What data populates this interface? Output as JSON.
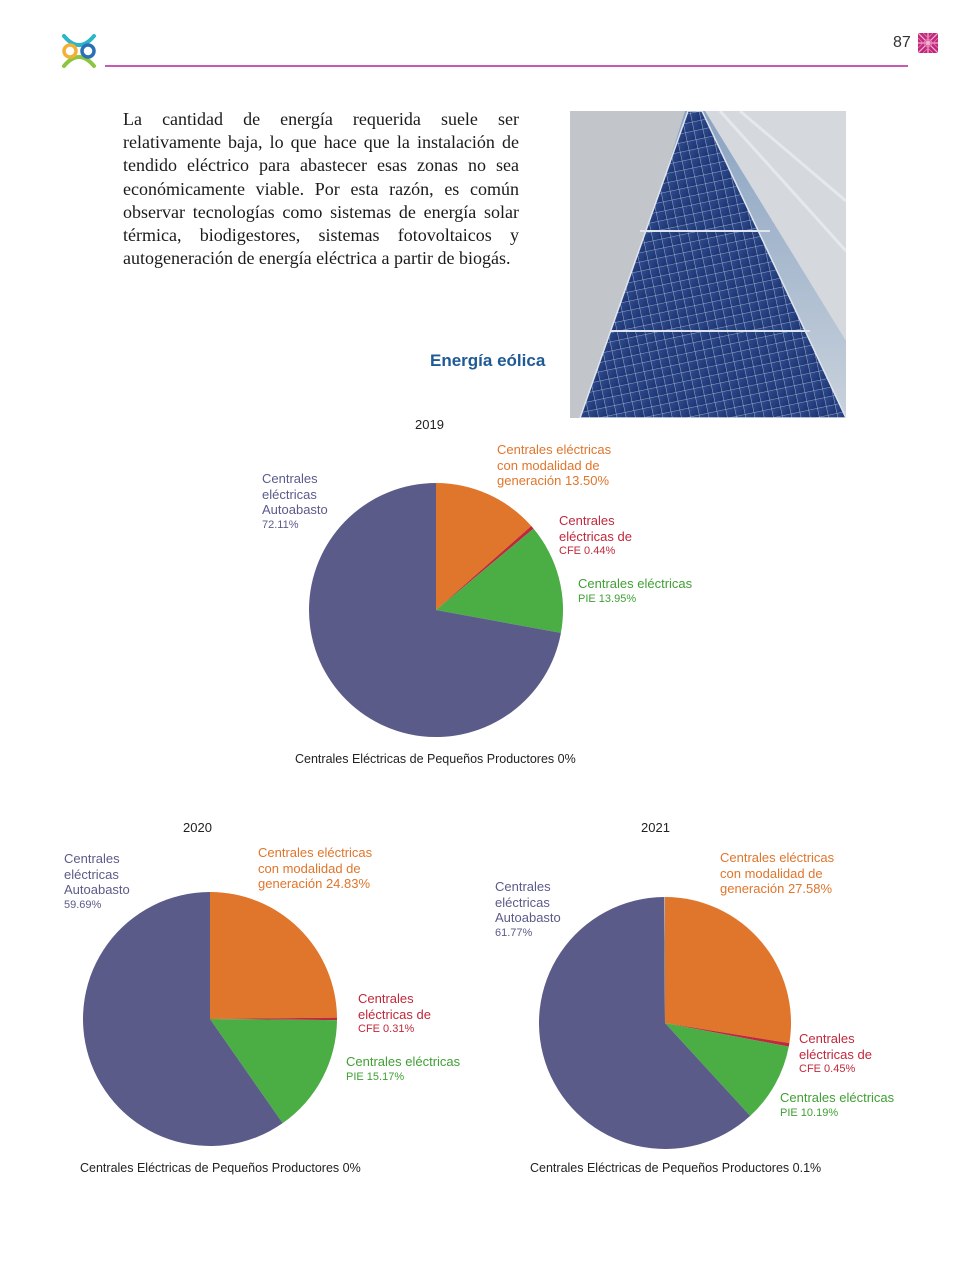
{
  "header": {
    "page_number": "87"
  },
  "body_text": "La cantidad de energía requerida suele ser relativamente baja, lo que hace que la instalación de tendido eléctrico para abastecer esas zonas no sea económicamente viable. Por esta razón, es común observar tecnologías como sistemas de energía solar térmica, biodigestores, sistemas fotovoltaicos y autogeneración de energía eléctrica a partir de biogás.",
  "section_heading": "Energía eólica",
  "colors": {
    "autoabasto": "#5b5b8a",
    "modalidad": "#e0752c",
    "cfe": "#c0283c",
    "pie": "#4aae44",
    "pequenos": "#b0b0b0",
    "rule": "#c85ab4",
    "heading": "#1e5a96"
  },
  "chart_data": [
    {
      "type": "pie",
      "title": "2019",
      "series": [
        {
          "name": "Centrales eléctricas con modalidad de generación",
          "value": 13.5
        },
        {
          "name": "Centrales eléctricas de CFE",
          "value": 0.44
        },
        {
          "name": "Centrales eléctricas PIE",
          "value": 13.95
        },
        {
          "name": "Centrales eléctricas Autoabasto",
          "value": 72.11
        },
        {
          "name": "Centrales Eléctricas de Pequeños Productores",
          "value": 0
        }
      ],
      "labels": {
        "modalidad_1": "Centrales eléctricas",
        "modalidad_2": "con modalidad de",
        "modalidad_3": "generación 13.50%",
        "cfe_1": "Centrales",
        "cfe_2": "eléctricas de",
        "cfe_3": "CFE 0.44%",
        "pie_1": "Centrales eléctricas",
        "pie_2": "PIE 13.95%",
        "auto_1": "Centrales",
        "auto_2": "eléctricas",
        "auto_3": "Autoabasto",
        "auto_4": "72.11%",
        "pequenos": "Centrales Eléctricas de Pequeños Productores 0%"
      }
    },
    {
      "type": "pie",
      "title": "2020",
      "series": [
        {
          "name": "Centrales eléctricas con modalidad de generación",
          "value": 24.83
        },
        {
          "name": "Centrales eléctricas de CFE",
          "value": 0.31
        },
        {
          "name": "Centrales eléctricas PIE",
          "value": 15.17
        },
        {
          "name": "Centrales eléctricas Autoabasto",
          "value": 59.69
        },
        {
          "name": "Centrales Eléctricas de Pequeños Productores",
          "value": 0
        }
      ],
      "labels": {
        "modalidad_1": "Centrales eléctricas",
        "modalidad_2": "con modalidad de",
        "modalidad_3": "generación 24.83%",
        "cfe_1": "Centrales",
        "cfe_2": "eléctricas de",
        "cfe_3": "CFE 0.31%",
        "pie_1": "Centrales eléctricas",
        "pie_2": "PIE 15.17%",
        "auto_1": "Centrales",
        "auto_2": "eléctricas",
        "auto_3": "Autoabasto",
        "auto_4": "59.69%",
        "pequenos": "Centrales Eléctricas de Pequeños Productores 0%"
      }
    },
    {
      "type": "pie",
      "title": "2021",
      "series": [
        {
          "name": "Centrales eléctricas con modalidad de generación",
          "value": 27.58
        },
        {
          "name": "Centrales eléctricas de CFE",
          "value": 0.45
        },
        {
          "name": "Centrales eléctricas PIE",
          "value": 10.19
        },
        {
          "name": "Centrales eléctricas Autoabasto",
          "value": 61.77
        },
        {
          "name": "Centrales Eléctricas de Pequeños Productores",
          "value": 0.1
        }
      ],
      "labels": {
        "modalidad_1": "Centrales eléctricas",
        "modalidad_2": "con modalidad de",
        "modalidad_3": "generación 27.58%",
        "cfe_1": "Centrales",
        "cfe_2": "eléctricas de",
        "cfe_3": "CFE 0.45%",
        "pie_1": "Centrales eléctricas",
        "pie_2": "PIE 10.19%",
        "auto_1": "Centrales",
        "auto_2": "eléctricas",
        "auto_3": "Autoabasto",
        "auto_4": "61.77%",
        "pequenos": "Centrales Eléctricas de Pequeños Productores 0.1%"
      }
    }
  ]
}
